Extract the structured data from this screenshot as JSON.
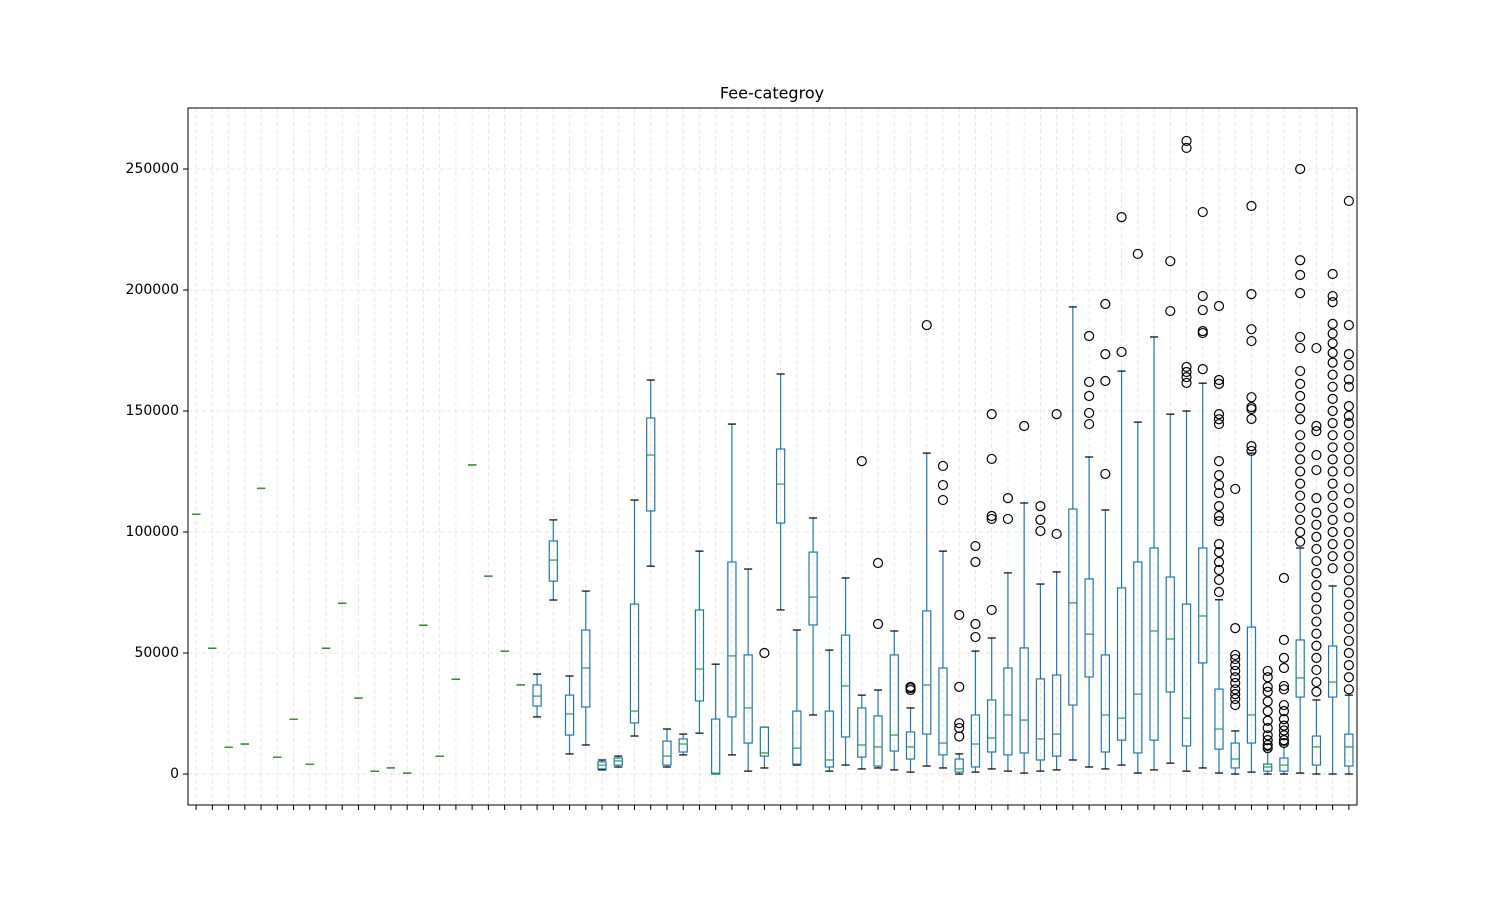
{
  "chart_data": {
    "type": "box",
    "title": "Fee-categroy",
    "box_color": "#1f77b4",
    "median_color": "#2ca02c",
    "grid": true,
    "ylim": [
      -12800,
      275200
    ],
    "yticks": [
      0,
      50000,
      100000,
      150000,
      200000,
      250000
    ],
    "categories": [
      null,
      null,
      null,
      null,
      null,
      null,
      null,
      null,
      null,
      null,
      null,
      null,
      null,
      null,
      null,
      null,
      null,
      null,
      null,
      null,
      null,
      null,
      null,
      null,
      null,
      null,
      null,
      null,
      null,
      null,
      null,
      null,
      null,
      null,
      null,
      null,
      null,
      null,
      null,
      null,
      null,
      null,
      null,
      null,
      null,
      null,
      null,
      null,
      null,
      null,
      null,
      null,
      null,
      null,
      null,
      null,
      null,
      null,
      null,
      null,
      null,
      null,
      null,
      null,
      null,
      null,
      null,
      null,
      null,
      null,
      null,
      null
    ],
    "boxes": [
      {
        "min": 107400,
        "q1": 107400,
        "median": 107400,
        "q3": 107400,
        "max": 107400
      },
      {
        "min": 52000,
        "q1": 52000,
        "median": 52000,
        "q3": 52000,
        "max": 52000
      },
      {
        "min": 11000,
        "q1": 11000,
        "median": 11000,
        "q3": 11000,
        "max": 11000
      },
      {
        "min": 12400,
        "q1": 12400,
        "median": 12400,
        "q3": 12400,
        "max": 12400
      },
      {
        "min": 118000,
        "q1": 118000,
        "median": 118000,
        "q3": 118000,
        "max": 118000
      },
      {
        "min": 7000,
        "q1": 7000,
        "median": 7000,
        "q3": 7000,
        "max": 7000
      },
      {
        "min": 22700,
        "q1": 22700,
        "median": 22700,
        "q3": 22700,
        "max": 22700
      },
      {
        "min": 4100,
        "q1": 4100,
        "median": 4100,
        "q3": 4100,
        "max": 4100
      },
      {
        "min": 52000,
        "q1": 52000,
        "median": 52000,
        "q3": 52000,
        "max": 52000
      },
      {
        "min": 70600,
        "q1": 70600,
        "median": 70600,
        "q3": 70600,
        "max": 70600
      },
      {
        "min": 31400,
        "q1": 31400,
        "median": 31400,
        "q3": 31400,
        "max": 31400
      },
      {
        "min": 1200,
        "q1": 1200,
        "median": 1200,
        "q3": 1200,
        "max": 1200
      },
      {
        "min": 2500,
        "q1": 2500,
        "median": 2500,
        "q3": 2500,
        "max": 2500
      },
      {
        "min": 400,
        "q1": 400,
        "median": 400,
        "q3": 400,
        "max": 400
      },
      {
        "min": 61500,
        "q1": 61500,
        "median": 61500,
        "q3": 61500,
        "max": 61500
      },
      {
        "min": 7400,
        "q1": 7400,
        "median": 7400,
        "q3": 7400,
        "max": 7400
      },
      {
        "min": 39200,
        "q1": 39200,
        "median": 39200,
        "q3": 39200,
        "max": 39200
      },
      {
        "min": 127700,
        "q1": 127700,
        "median": 127700,
        "q3": 127700,
        "max": 127700
      },
      {
        "min": 81800,
        "q1": 81800,
        "median": 81800,
        "q3": 81800,
        "max": 81800
      },
      {
        "min": 50800,
        "q1": 50800,
        "median": 50800,
        "q3": 50800,
        "max": 50800
      },
      {
        "min": 36800,
        "q1": 36800,
        "median": 36800,
        "q3": 36800,
        "max": 36800
      },
      {
        "min": 23600,
        "q1": 28100,
        "median": 32200,
        "q3": 36800,
        "max": 41300
      },
      {
        "min": 71900,
        "q1": 79700,
        "median": 88400,
        "q3": 96300,
        "max": 105000
      },
      {
        "min": 8300,
        "q1": 16100,
        "median": 24800,
        "q3": 32600,
        "max": 40500
      },
      {
        "min": 12000,
        "q1": 27700,
        "median": 43800,
        "q3": 59500,
        "max": 75600
      },
      {
        "min": 1700,
        "q1": 2100,
        "median": 3700,
        "q3": 5000,
        "max": 5800
      },
      {
        "min": 2900,
        "q1": 3700,
        "median": 5400,
        "q3": 6600,
        "max": 7400
      },
      {
        "min": 15700,
        "q1": 21100,
        "median": 26000,
        "q3": 70200,
        "max": 113200
      },
      {
        "min": 85900,
        "q1": 108700,
        "median": 131800,
        "q3": 147100,
        "max": 162800
      },
      {
        "min": 2900,
        "q1": 3700,
        "median": 7400,
        "q3": 13600,
        "max": 18600
      },
      {
        "min": 7900,
        "q1": 9100,
        "median": 12400,
        "q3": 14500,
        "max": 16500
      },
      {
        "min": 16900,
        "q1": 30200,
        "median": 43400,
        "q3": 67800,
        "max": 92100
      },
      {
        "min": 0,
        "q1": 0,
        "median": 400,
        "q3": 22700,
        "max": 45400
      },
      {
        "min": 7900,
        "q1": 23600,
        "median": 48800,
        "q3": 87600,
        "max": 144600
      },
      {
        "min": 1200,
        "q1": 12800,
        "median": 27300,
        "q3": 49200,
        "max": 84700
      },
      {
        "min": 2500,
        "q1": 7400,
        "median": 8700,
        "q3": 19400,
        "max": 19400,
        "outliers": [
          50000
        ]
      },
      {
        "min": 67800,
        "q1": 103700,
        "median": 119800,
        "q3": 134300,
        "max": 165300
      },
      {
        "min": 3700,
        "q1": 4100,
        "median": 10700,
        "q3": 26000,
        "max": 59500
      },
      {
        "min": 24400,
        "q1": 61600,
        "median": 73100,
        "q3": 91700,
        "max": 105800
      },
      {
        "min": 1200,
        "q1": 2900,
        "median": 5800,
        "q3": 26000,
        "max": 51200
      },
      {
        "min": 3700,
        "q1": 15300,
        "median": 36400,
        "q3": 57400,
        "max": 81000
      },
      {
        "min": 2100,
        "q1": 7000,
        "median": 12000,
        "q3": 27300,
        "max": 32600,
        "outliers": [
          129300
        ]
      },
      {
        "min": 2500,
        "q1": 3300,
        "median": 11200,
        "q3": 24000,
        "max": 34700,
        "outliers": [
          62000,
          87200
        ]
      },
      {
        "min": 1700,
        "q1": 9500,
        "median": 16100,
        "q3": 49200,
        "max": 59100
      },
      {
        "min": 800,
        "q1": 6200,
        "median": 11200,
        "q3": 17400,
        "max": 27300,
        "outliers": [
          34700,
          35500,
          36000
        ]
      },
      {
        "min": 3300,
        "q1": 16500,
        "median": 36800,
        "q3": 67400,
        "max": 132600,
        "outliers": [
          185500
        ]
      },
      {
        "min": 2500,
        "q1": 7900,
        "median": 12800,
        "q3": 43800,
        "max": 92100,
        "outliers": [
          113200,
          119400,
          127300
        ]
      },
      {
        "min": 0,
        "q1": 800,
        "median": 2100,
        "q3": 6200,
        "max": 8300,
        "outliers": [
          65700,
          36000,
          21000,
          19000,
          15500
        ]
      },
      {
        "min": 800,
        "q1": 2900,
        "median": 12400,
        "q3": 24400,
        "max": 50800,
        "outliers": [
          94200,
          87600,
          62000,
          56600
        ]
      },
      {
        "min": 2100,
        "q1": 9100,
        "median": 14900,
        "q3": 30600,
        "max": 56200,
        "outliers": [
          148700,
          130200,
          105400,
          106600,
          67800
        ]
      },
      {
        "min": 1200,
        "q1": 7900,
        "median": 24400,
        "q3": 43800,
        "max": 83100,
        "outliers": [
          114000,
          105400
        ]
      },
      {
        "min": 400,
        "q1": 8700,
        "median": 22300,
        "q3": 52100,
        "max": 112000,
        "outliers": [
          143800
        ]
      },
      {
        "min": 1200,
        "q1": 5800,
        "median": 14500,
        "q3": 39300,
        "max": 78500,
        "outliers": [
          110700,
          105000,
          100400
        ]
      },
      {
        "min": 1700,
        "q1": 7400,
        "median": 16500,
        "q3": 40900,
        "max": 83500,
        "outliers": [
          148700,
          99200
        ]
      },
      {
        "min": 5800,
        "q1": 28500,
        "median": 70700,
        "q3": 109500,
        "max": 193000
      },
      {
        "min": 2900,
        "q1": 40100,
        "median": 57800,
        "q3": 80600,
        "max": 131000,
        "outliers": [
          181000,
          162000,
          156200,
          149200,
          144600
        ]
      },
      {
        "min": 2100,
        "q1": 9100,
        "median": 24400,
        "q3": 49200,
        "max": 109100,
        "outliers": [
          194200,
          173500,
          162400,
          124000
        ]
      },
      {
        "min": 3700,
        "q1": 14000,
        "median": 23100,
        "q3": 76900,
        "max": 166500,
        "outliers": [
          230100,
          174400
        ]
      },
      {
        "min": 400,
        "q1": 8700,
        "median": 33000,
        "q3": 87600,
        "max": 145400,
        "outliers": [
          214900
        ]
      },
      {
        "min": 1700,
        "q1": 14000,
        "median": 59100,
        "q3": 93400,
        "max": 180600
      },
      {
        "min": 4500,
        "q1": 33900,
        "median": 55800,
        "q3": 81400,
        "max": 148700,
        "outliers": [
          211900,
          191300
        ]
      },
      {
        "min": 1200,
        "q1": 11600,
        "median": 23100,
        "q3": 70200,
        "max": 150000,
        "outliers": [
          261600,
          258700,
          168200,
          166100,
          164000,
          161600
        ]
      },
      {
        "min": 2500,
        "q1": 45900,
        "median": 65300,
        "q3": 93400,
        "max": 161500,
        "outliers": [
          232200,
          197500,
          191700,
          183000,
          182200,
          167300
        ]
      },
      {
        "min": 400,
        "q1": 10300,
        "median": 18600,
        "q3": 35100,
        "max": 72000,
        "outliers": [
          193400,
          162800,
          161200,
          148700,
          146600,
          144600,
          129300,
          123500,
          119400,
          116100,
          110700,
          106600,
          104500,
          95000,
          91700,
          87600,
          84300,
          80200,
          75200
        ]
      },
      {
        "min": 0,
        "q1": 2500,
        "median": 6200,
        "q3": 12800,
        "max": 17800,
        "outliers": [
          117800,
          60300,
          49200,
          47500,
          45000,
          42600,
          40000,
          37600,
          35000,
          33000,
          31000,
          28500
        ]
      },
      {
        "min": 800,
        "q1": 12800,
        "median": 24400,
        "q3": 60700,
        "max": 132600,
        "outliers": [
          234700,
          198300,
          183800,
          178900,
          155700,
          151600,
          150800,
          146700,
          135500,
          133500
        ]
      },
      {
        "min": 0,
        "q1": 1200,
        "median": 2900,
        "q3": 4100,
        "max": 9900,
        "outliers": [
          42600,
          40000,
          36000,
          34000,
          30000,
          26000,
          22000,
          19000,
          16000,
          14000,
          12000,
          10700
        ]
      },
      {
        "min": 0,
        "q1": 1200,
        "median": 3700,
        "q3": 6600,
        "max": 12000,
        "outliers": [
          81000,
          55400,
          48000,
          43800,
          36400,
          35000,
          28500,
          26000,
          22700,
          20000,
          18000,
          16000,
          14000,
          12800
        ]
      },
      {
        "min": 400,
        "q1": 31800,
        "median": 39700,
        "q3": 55400,
        "max": 93400,
        "outliers": [
          250000,
          212300,
          206200,
          198700,
          180600,
          176000,
          166500,
          161200,
          156200,
          151200,
          146600,
          140000,
          135000,
          130000,
          125000,
          120000,
          115000,
          110000,
          105000,
          100000,
          96000
        ]
      },
      {
        "min": 0,
        "q1": 3700,
        "median": 11200,
        "q3": 15700,
        "max": 30600,
        "outliers": [
          176000,
          143800,
          141700,
          131800,
          125600,
          114000,
          108000,
          103000,
          98000,
          93000,
          88000,
          83000,
          78000,
          73000,
          68000,
          63000,
          58000,
          53000,
          48000,
          43000,
          38000,
          34000
        ]
      },
      {
        "min": 0,
        "q1": 31800,
        "median": 38000,
        "q3": 52900,
        "max": 77700,
        "outliers": [
          206600,
          197500,
          195000,
          186000,
          182000,
          178000,
          174000,
          170000,
          165000,
          160000,
          155000,
          150000,
          145000,
          140000,
          135000,
          130000,
          125000,
          120000,
          115000,
          110000,
          105000,
          100000,
          95000,
          90000,
          85000
        ]
      },
      {
        "min": 0,
        "q1": 3300,
        "median": 11200,
        "q3": 16500,
        "max": 32600,
        "outliers": [
          236800,
          185500,
          173500,
          168900,
          163000,
          160000,
          152000,
          148000,
          145000,
          140000,
          135000,
          130000,
          125000,
          118000,
          112000,
          106000,
          100000,
          95000,
          90000,
          85000,
          80000,
          75000,
          70000,
          65000,
          60000,
          55000,
          50000,
          45000,
          40000,
          35000
        ]
      }
    ]
  }
}
